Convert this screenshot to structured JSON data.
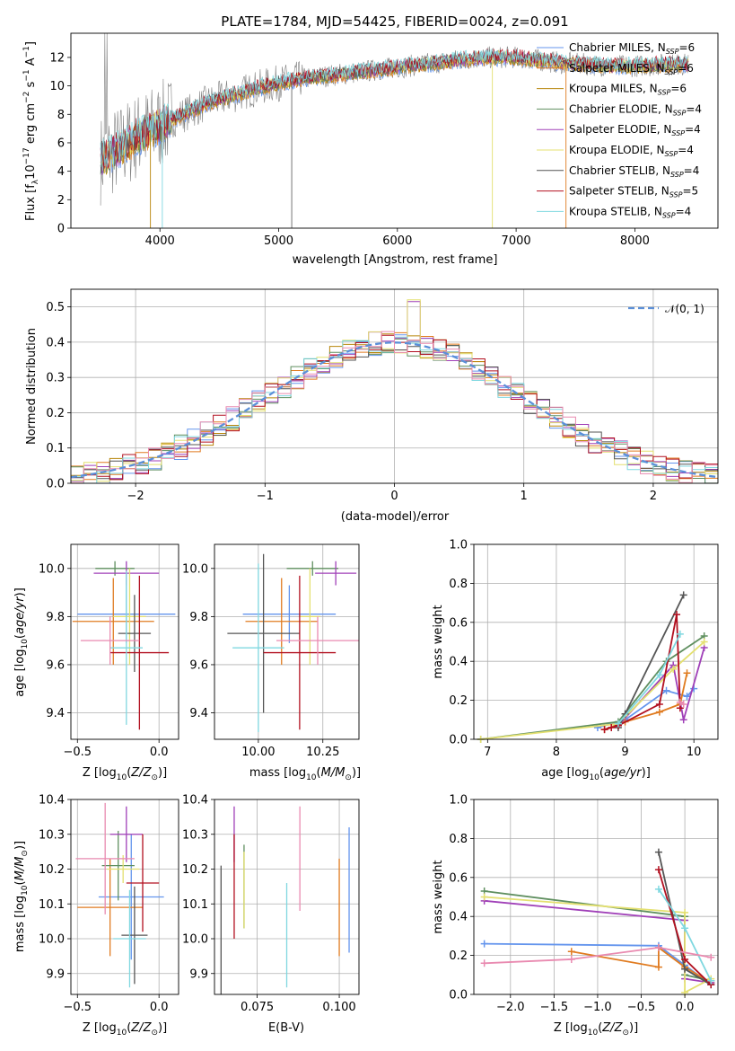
{
  "title": "PLATE=1784, MJD=54425, FIBERID=0024, z=0.091",
  "colors": {
    "Chabrier MILES": "#6495ed",
    "Salpeter MILES": "#e07b20",
    "Kroupa MILES": "#b8860b",
    "Chabrier ELODIE": "#5f8f5f",
    "Salpeter ELODIE": "#a040b8",
    "Kroupa ELODIE": "#e4e070",
    "Chabrier STELIB": "#555555",
    "Salpeter STELIB": "#b21020",
    "Kroupa STELIB": "#80d8e0",
    "data": "#808080",
    "normal": "#5b8fd8",
    "extra": "#e98ab0"
  },
  "chart_data": [
    {
      "id": "spectrum",
      "type": "line",
      "title": "PLATE=1784, MJD=54425, FIBERID=0024, z=0.091",
      "xlabel": "wavelength [Angstrom, rest frame]",
      "ylabel": "Flux [f_λ10^-17 erg cm^-2 s^-1 A^-1]",
      "xlim": [
        3250,
        8700
      ],
      "ylim": [
        0,
        13.7
      ],
      "xticks": [
        4000,
        5000,
        6000,
        7000,
        8000
      ],
      "yticks": [
        0,
        2,
        4,
        6,
        8,
        10,
        12
      ],
      "legend_loc": "right",
      "legend": [
        "Chabrier MILES, N_SSP=6",
        "Salpeter MILES, N_SSP=6",
        "Kroupa MILES, N_SSP=6",
        "Chabrier ELODIE, N_SSP=4",
        "Salpeter ELODIE, N_SSP=4",
        "Kroupa ELODIE, N_SSP=4",
        "Chabrier STELIB, N_SSP=4",
        "Salpeter STELIB, N_SSP=5",
        "Kroupa STELIB, N_SSP=4"
      ],
      "continuum": {
        "x": [
          3500,
          3600,
          3700,
          3800,
          3900,
          4000,
          4200,
          4400,
          4600,
          4800,
          5000,
          5200,
          5400,
          5600,
          5800,
          6000,
          6200,
          6400,
          6600,
          6800,
          7000,
          7200,
          7400,
          7600,
          7800,
          8000,
          8200,
          8400
        ],
        "y": [
          4.8,
          5.3,
          5.8,
          6.4,
          6.8,
          7.2,
          8.0,
          8.8,
          9.3,
          9.8,
          10.2,
          10.5,
          10.7,
          10.9,
          11.1,
          11.3,
          11.5,
          11.7,
          11.9,
          12.0,
          12.0,
          11.8,
          11.6,
          11.5,
          11.4,
          11.4,
          11.5,
          11.5
        ]
      }
    },
    {
      "id": "residuals",
      "type": "line",
      "xlabel": "(data-model)/error",
      "ylabel": "Normed distribution",
      "xlim": [
        -2.5,
        2.5
      ],
      "ylim": [
        0,
        0.55
      ],
      "xticks": [
        -2,
        -1,
        0,
        1,
        2
      ],
      "yticks": [
        0.0,
        0.1,
        0.2,
        0.3,
        0.4,
        0.5
      ],
      "legend": [
        "𝒩(0, 1)"
      ],
      "legend_loc": "top-right"
    },
    {
      "id": "z-age",
      "type": "scatter",
      "xlabel": "Z [log10(Z/Z⊙)]",
      "ylabel": "age [log10(age/yr)]",
      "xlim": [
        -0.54,
        0.12
      ],
      "ylim": [
        9.29,
        10.1
      ],
      "xticks": [
        -0.5,
        0.0
      ],
      "yticks": [
        9.4,
        9.6,
        9.8,
        10.0
      ],
      "points": [
        {
          "series": "Chabrier MILES",
          "x": -0.2,
          "y": 9.81,
          "xerr": 0.3,
          "yerr": 0.12
        },
        {
          "series": "Salpeter MILES",
          "x": -0.28,
          "y": 9.78,
          "xerr": 0.25,
          "yerr": 0.18
        },
        {
          "series": "Chabrier ELODIE",
          "x": -0.27,
          "y": 10.0,
          "xerr": 0.12,
          "yerr": 0.03
        },
        {
          "series": "Salpeter ELODIE",
          "x": -0.2,
          "y": 9.98,
          "xerr": 0.2,
          "yerr": 0.05
        },
        {
          "series": "Kroupa ELODIE",
          "x": -0.18,
          "y": 9.8,
          "xerr": 0.1,
          "yerr": 0.2
        },
        {
          "series": "Chabrier STELIB",
          "x": -0.15,
          "y": 9.73,
          "xerr": 0.1,
          "yerr": 0.16
        },
        {
          "series": "Salpeter STELIB",
          "x": -0.12,
          "y": 9.65,
          "xerr": 0.18,
          "yerr": 0.32
        },
        {
          "series": "Kroupa STELIB",
          "x": -0.2,
          "y": 9.67,
          "xerr": 0.1,
          "yerr": 0.32
        },
        {
          "series": "extra",
          "x": -0.3,
          "y": 9.7,
          "xerr": 0.18,
          "yerr": 0.1
        }
      ]
    },
    {
      "id": "mass-age",
      "type": "scatter",
      "xlabel": "mass [log10(M/M⊙)]",
      "xlim": [
        9.83,
        10.39
      ],
      "ylim": [
        9.29,
        10.1
      ],
      "xticks": [
        10.0,
        10.25
      ],
      "yticks": [
        9.4,
        9.6,
        9.8,
        10.0
      ],
      "points": [
        {
          "series": "Chabrier MILES",
          "x": 10.12,
          "y": 9.81,
          "xerr": 0.18,
          "yerr": 0.12
        },
        {
          "series": "Salpeter MILES",
          "x": 10.09,
          "y": 9.78,
          "xerr": 0.14,
          "yerr": 0.18
        },
        {
          "series": "Chabrier ELODIE",
          "x": 10.21,
          "y": 10.0,
          "xerr": 0.1,
          "yerr": 0.03
        },
        {
          "series": "Salpeter ELODIE",
          "x": 10.3,
          "y": 9.98,
          "xerr": 0.08,
          "yerr": 0.05
        },
        {
          "series": "Kroupa ELODIE",
          "x": 10.2,
          "y": 9.8,
          "xerr": 0.04,
          "yerr": 0.2
        },
        {
          "series": "Chabrier STELIB",
          "x": 10.02,
          "y": 9.73,
          "xerr": 0.14,
          "yerr": 0.33
        },
        {
          "series": "Salpeter STELIB",
          "x": 10.16,
          "y": 9.65,
          "xerr": 0.14,
          "yerr": 0.32
        },
        {
          "series": "Kroupa STELIB",
          "x": 10.0,
          "y": 9.67,
          "xerr": 0.1,
          "yerr": 0.35
        },
        {
          "series": "extra",
          "x": 10.23,
          "y": 9.7,
          "xerr": 0.16,
          "yerr": 0.1
        }
      ]
    },
    {
      "id": "weight-age",
      "type": "line",
      "xlabel": "age [log10(age/yr)]",
      "ylabel": "mass weight",
      "xlim": [
        6.8,
        10.35
      ],
      "ylim": [
        0,
        1.0
      ],
      "xticks": [
        7,
        8,
        9,
        10
      ],
      "yticks": [
        0.0,
        0.2,
        0.4,
        0.6,
        0.8,
        1.0
      ],
      "series": [
        {
          "name": "Chabrier MILES",
          "x": [
            8.6,
            9.0,
            9.6,
            9.9,
            10.0
          ],
          "y": [
            0.06,
            0.1,
            0.25,
            0.22,
            0.26
          ]
        },
        {
          "name": "Salpeter MILES",
          "x": [
            8.7,
            9.0,
            9.5,
            9.8,
            9.9
          ],
          "y": [
            0.05,
            0.09,
            0.14,
            0.18,
            0.34
          ]
        },
        {
          "name": "Chabrier ELODIE",
          "x": [
            6.9,
            8.9,
            9.6,
            10.15
          ],
          "y": [
            0.0,
            0.09,
            0.4,
            0.53
          ]
        },
        {
          "name": "Salpeter ELODIE",
          "x": [
            8.9,
            9.7,
            9.85,
            10.15
          ],
          "y": [
            0.07,
            0.38,
            0.1,
            0.47
          ]
        },
        {
          "name": "Kroupa ELODIE",
          "x": [
            6.9,
            8.9,
            9.7,
            10.15
          ],
          "y": [
            0.0,
            0.08,
            0.36,
            0.5
          ]
        },
        {
          "name": "Chabrier STELIB",
          "x": [
            8.9,
            9.0,
            9.85
          ],
          "y": [
            0.06,
            0.13,
            0.74
          ]
        },
        {
          "name": "Salpeter STELIB",
          "x": [
            8.7,
            8.8,
            8.9,
            9.5,
            9.75,
            9.8
          ],
          "y": [
            0.05,
            0.06,
            0.07,
            0.18,
            0.64,
            0.16
          ]
        },
        {
          "name": "Kroupa STELIB",
          "x": [
            8.9,
            9.5,
            9.8
          ],
          "y": [
            0.08,
            0.33,
            0.54
          ]
        },
        {
          "name": "extra",
          "x": [
            9.8,
            9.85
          ],
          "y": [
            0.19,
            0.18
          ]
        }
      ]
    },
    {
      "id": "z-mass",
      "type": "scatter",
      "xlabel": "Z [log10(Z/Z⊙)]",
      "ylabel": "mass [log10(M/M⊙)]",
      "xlim": [
        -0.54,
        0.12
      ],
      "ylim": [
        9.84,
        10.4
      ],
      "xticks": [
        -0.5,
        0.0
      ],
      "yticks": [
        9.9,
        10.0,
        10.1,
        10.2,
        10.3,
        10.4
      ],
      "points": [
        {
          "series": "Chabrier MILES",
          "x": -0.17,
          "y": 10.12,
          "xerr": 0.2,
          "yerr": 0.18
        },
        {
          "series": "Salpeter MILES",
          "x": -0.3,
          "y": 10.09,
          "xerr": 0.2,
          "yerr": 0.14
        },
        {
          "series": "Chabrier ELODIE",
          "x": -0.25,
          "y": 10.21,
          "xerr": 0.1,
          "yerr": 0.1
        },
        {
          "series": "Salpeter ELODIE",
          "x": -0.2,
          "y": 10.3,
          "xerr": 0.1,
          "yerr": 0.08
        },
        {
          "series": "Kroupa ELODIE",
          "x": -0.22,
          "y": 10.2,
          "xerr": 0.1,
          "yerr": 0.04
        },
        {
          "series": "Chabrier STELIB",
          "x": -0.15,
          "y": 10.01,
          "xerr": 0.08,
          "yerr": 0.14
        },
        {
          "series": "Salpeter STELIB",
          "x": -0.1,
          "y": 10.16,
          "xerr": 0.1,
          "yerr": 0.14
        },
        {
          "series": "Kroupa STELIB",
          "x": -0.18,
          "y": 10.0,
          "xerr": 0.1,
          "yerr": 0.14
        },
        {
          "series": "extra",
          "x": -0.33,
          "y": 10.23,
          "xerr": 0.18,
          "yerr": 0.16
        }
      ]
    },
    {
      "id": "ebv-mass",
      "type": "scatter",
      "xlabel": "E(B-V)",
      "xlim": [
        0.062,
        0.106
      ],
      "ylim": [
        9.84,
        10.4
      ],
      "xticks": [
        0.075,
        0.1
      ],
      "yticks": [
        9.9,
        10.0,
        10.1,
        10.2,
        10.3,
        10.4
      ],
      "points": [
        {
          "series": "Chabrier MILES",
          "x": 0.103,
          "y": 10.14,
          "xerr": 0,
          "yerr": 0.18
        },
        {
          "series": "Salpeter MILES",
          "x": 0.1,
          "y": 10.09,
          "xerr": 0,
          "yerr": 0.14
        },
        {
          "series": "Chabrier ELODIE",
          "x": 0.071,
          "y": 10.15,
          "xerr": 0,
          "yerr": 0.12
        },
        {
          "series": "Salpeter ELODIE",
          "x": 0.068,
          "y": 10.3,
          "xerr": 0,
          "yerr": 0.08
        },
        {
          "series": "Kroupa ELODIE",
          "x": 0.071,
          "y": 10.14,
          "xerr": 0,
          "yerr": 0.11
        },
        {
          "series": "Chabrier STELIB",
          "x": 0.064,
          "y": 10.01,
          "xerr": 0,
          "yerr": 0.2
        },
        {
          "series": "Salpeter STELIB",
          "x": 0.068,
          "y": 10.15,
          "xerr": 0,
          "yerr": 0.15
        },
        {
          "series": "Kroupa STELIB",
          "x": 0.084,
          "y": 10.01,
          "xerr": 0,
          "yerr": 0.15
        },
        {
          "series": "extra",
          "x": 0.088,
          "y": 10.23,
          "xerr": 0,
          "yerr": 0.15
        }
      ]
    },
    {
      "id": "weight-z",
      "type": "line",
      "xlabel": "Z [log10(Z/Z⊙)]",
      "ylabel": "mass weight",
      "xlim": [
        -2.42,
        0.38
      ],
      "ylim": [
        0,
        1.0
      ],
      "xticks": [
        -2.0,
        -1.5,
        -1.0,
        -0.5,
        0.0
      ],
      "yticks": [
        0.0,
        0.2,
        0.4,
        0.6,
        0.8,
        1.0
      ],
      "series": [
        {
          "name": "Chabrier MILES",
          "x": [
            -2.3,
            -0.3,
            0.0,
            0.3
          ],
          "y": [
            0.26,
            0.25,
            0.15,
            0.05
          ]
        },
        {
          "name": "Salpeter MILES",
          "x": [
            -1.3,
            -0.3,
            -0.3,
            0.0,
            0.3
          ],
          "y": [
            0.22,
            0.14,
            0.24,
            0.14,
            0.06
          ]
        },
        {
          "name": "Chabrier ELODIE",
          "x": [
            -2.3,
            0.0,
            0.0,
            0.3
          ],
          "y": [
            0.53,
            0.4,
            0.1,
            0.07
          ]
        },
        {
          "name": "Salpeter ELODIE",
          "x": [
            -2.3,
            0.0,
            0.0,
            0.3
          ],
          "y": [
            0.48,
            0.38,
            0.08,
            0.06
          ]
        },
        {
          "name": "Kroupa ELODIE",
          "x": [
            -2.3,
            0.0,
            0.0,
            0.3
          ],
          "y": [
            0.5,
            0.42,
            0.01,
            0.08
          ]
        },
        {
          "name": "Chabrier STELIB",
          "x": [
            -0.3,
            0.0,
            0.3
          ],
          "y": [
            0.73,
            0.13,
            0.05
          ]
        },
        {
          "name": "Salpeter STELIB",
          "x": [
            -0.3,
            0.0,
            0.3
          ],
          "y": [
            0.64,
            0.18,
            0.05
          ]
        },
        {
          "name": "Kroupa STELIB",
          "x": [
            -0.3,
            0.0,
            0.3
          ],
          "y": [
            0.54,
            0.34,
            0.07
          ]
        },
        {
          "name": "extra",
          "x": [
            -2.3,
            -1.3,
            -0.3,
            0.3
          ],
          "y": [
            0.16,
            0.18,
            0.24,
            0.19
          ]
        }
      ]
    }
  ]
}
